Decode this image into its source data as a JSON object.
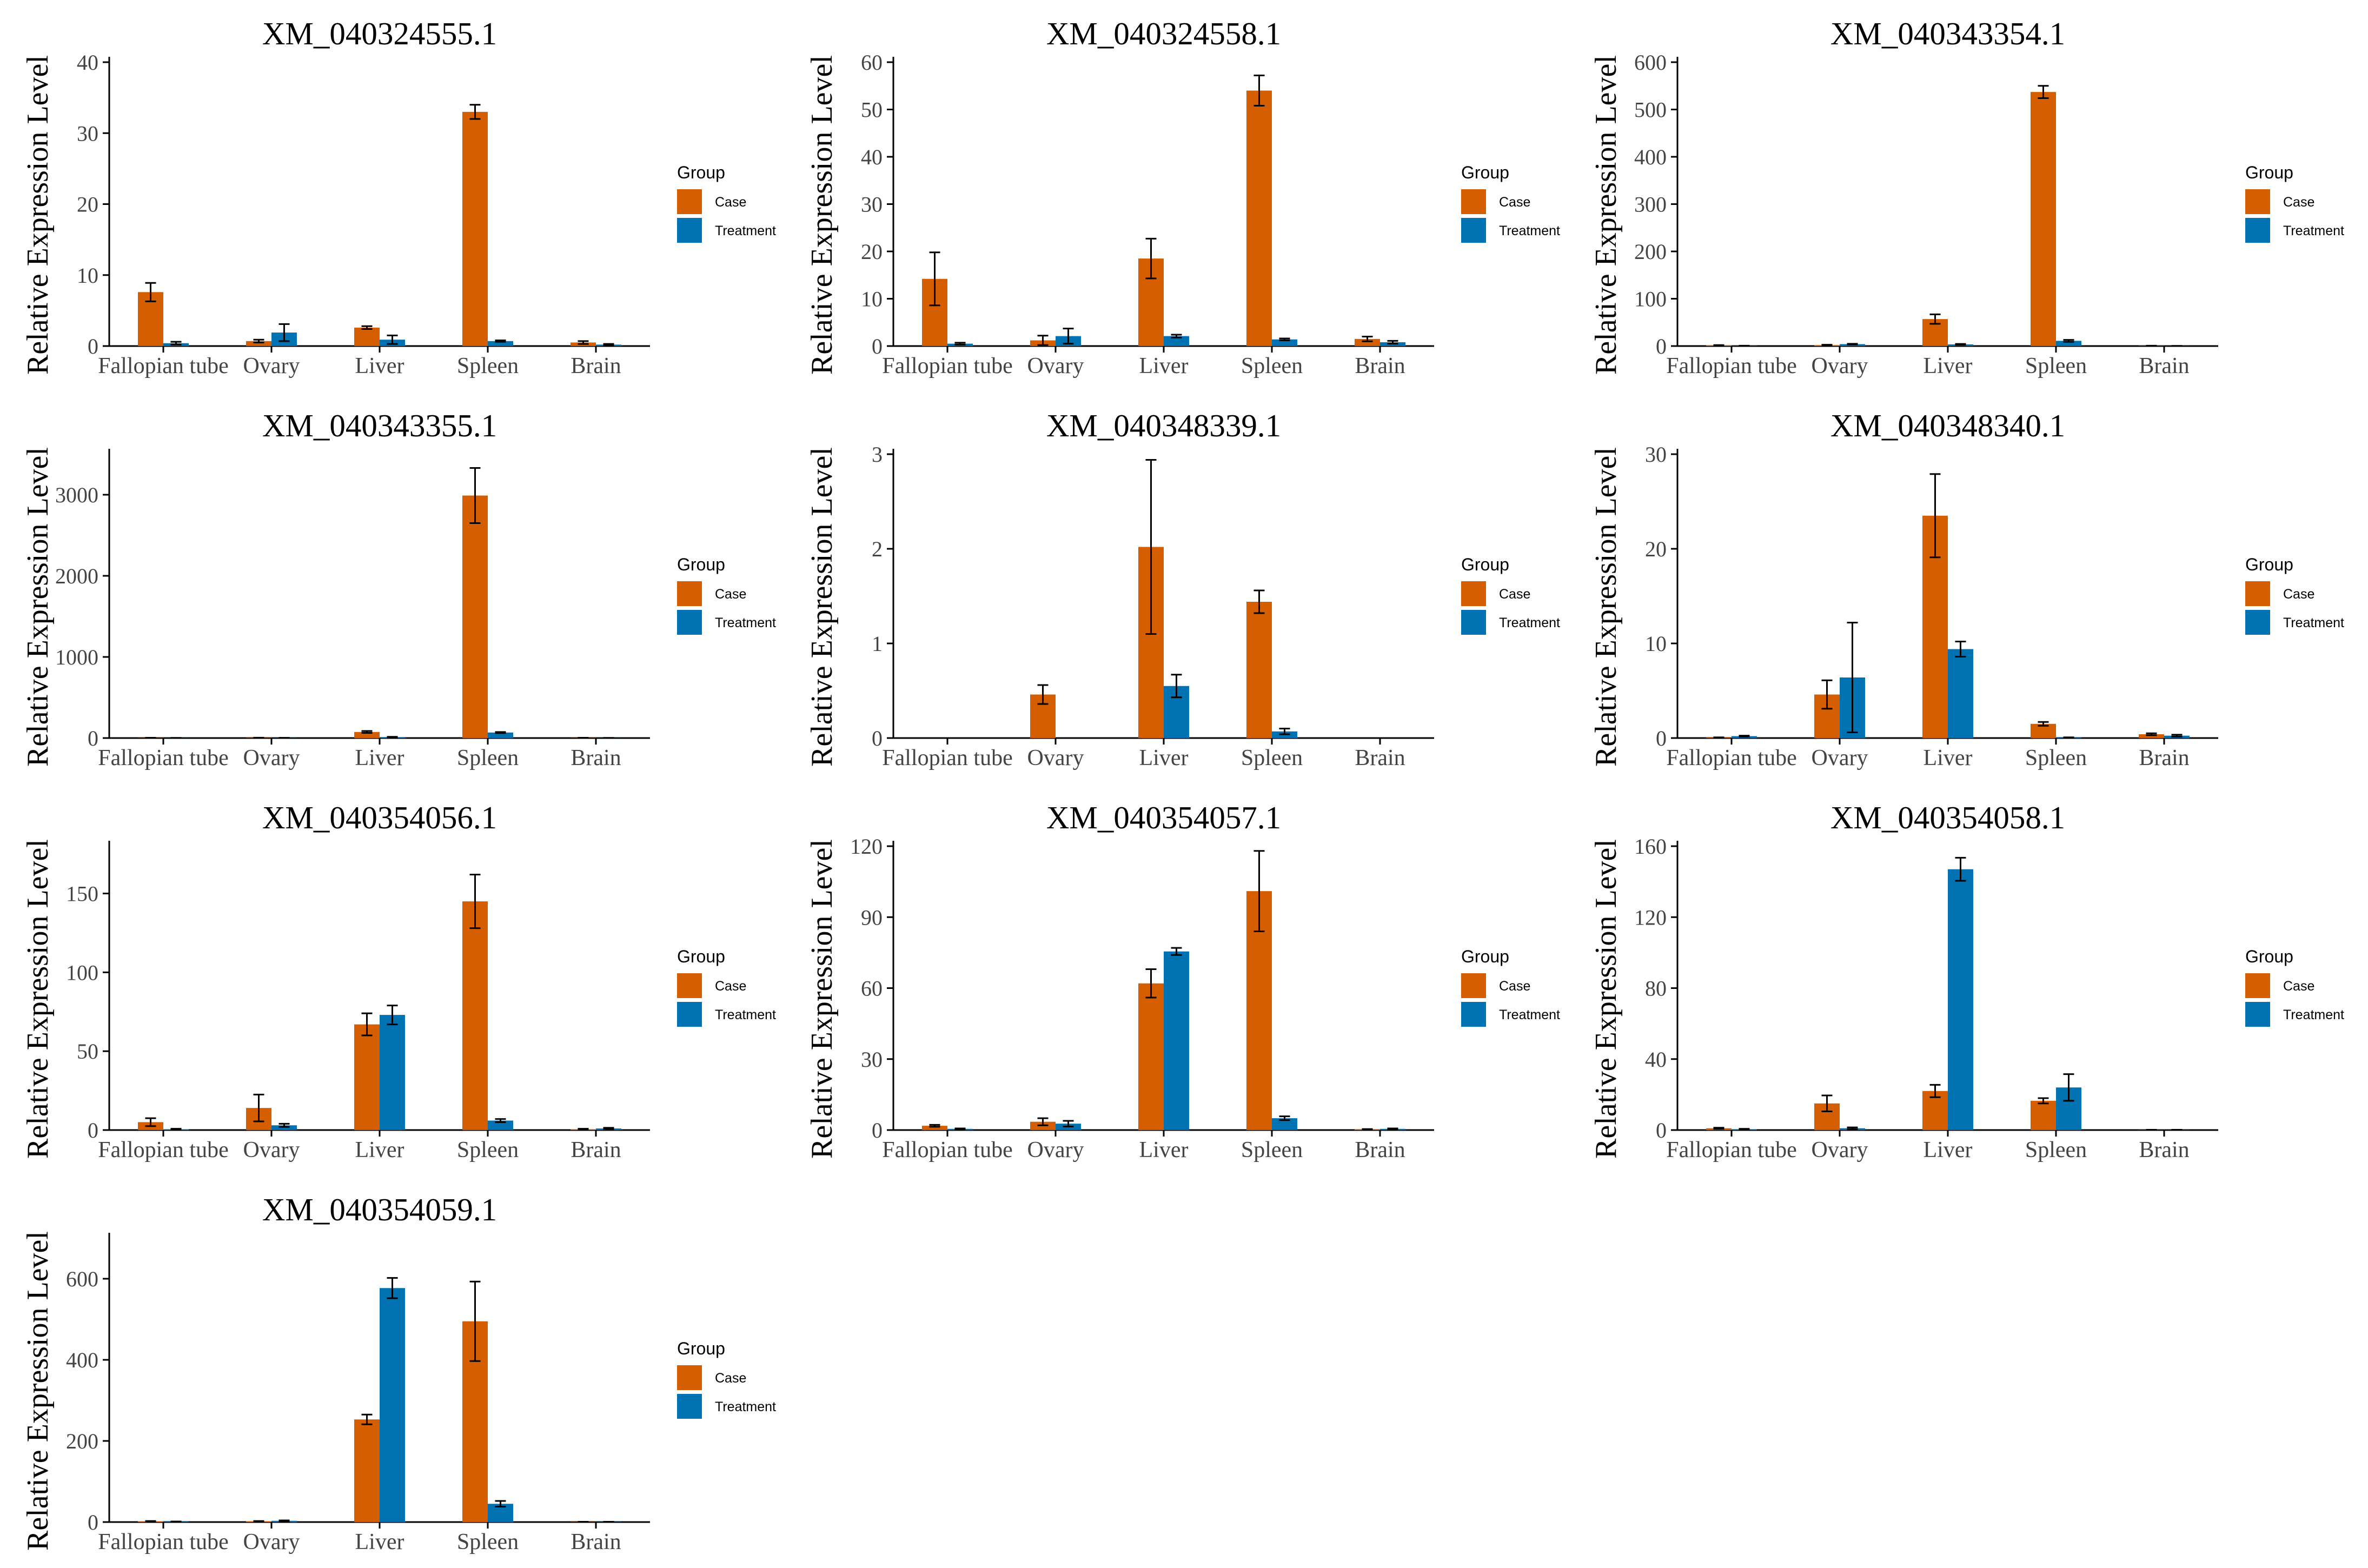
{
  "colors": {
    "case": "#D55E00",
    "treatment": "#0072B2"
  },
  "chart_data": [
    {
      "type": "bar",
      "title": "XM_040324555.1",
      "ylabel": "Relative Expression Level",
      "categories": [
        "Fallopian tube",
        "Ovary",
        "Liver",
        "Spleen",
        "Brain"
      ],
      "ylim": [
        0,
        40
      ],
      "yticks": [
        0,
        10,
        20,
        30,
        40
      ],
      "legend": {
        "title": "Group",
        "position": "right"
      },
      "series": [
        {
          "name": "Case",
          "values": [
            7.6,
            0.7,
            2.6,
            33.0,
            0.5
          ],
          "errors": [
            1.3,
            0.2,
            0.2,
            1.0,
            0.2
          ]
        },
        {
          "name": "Treatment",
          "values": [
            0.4,
            1.9,
            0.9,
            0.7,
            0.2
          ],
          "errors": [
            0.2,
            1.2,
            0.6,
            0.1,
            0.1
          ]
        }
      ]
    },
    {
      "type": "bar",
      "title": "XM_040324558.1",
      "ylabel": "Relative Expression Level",
      "categories": [
        "Fallopian tube",
        "Ovary",
        "Liver",
        "Spleen",
        "Brain"
      ],
      "ylim": [
        0,
        60
      ],
      "yticks": [
        0,
        10,
        20,
        30,
        40,
        50,
        60
      ],
      "legend": {
        "title": "Group",
        "position": "right"
      },
      "series": [
        {
          "name": "Case",
          "values": [
            14.2,
            1.2,
            18.5,
            54.0,
            1.5
          ],
          "errors": [
            5.6,
            1.0,
            4.2,
            3.2,
            0.5
          ]
        },
        {
          "name": "Treatment",
          "values": [
            0.5,
            2.1,
            2.1,
            1.4,
            0.8
          ],
          "errors": [
            0.2,
            1.6,
            0.3,
            0.2,
            0.3
          ]
        }
      ]
    },
    {
      "type": "bar",
      "title": "XM_040343354.1",
      "ylabel": "Relative Expression Level",
      "categories": [
        "Fallopian tube",
        "Ovary",
        "Liver",
        "Spleen",
        "Brain"
      ],
      "ylim": [
        0,
        600
      ],
      "yticks": [
        0,
        100,
        200,
        300,
        400,
        500,
        600
      ],
      "legend": {
        "title": "Group",
        "position": "right"
      },
      "series": [
        {
          "name": "Case",
          "values": [
            1.5,
            2.0,
            57.0,
            537.0,
            0.5
          ],
          "errors": [
            0.5,
            0.7,
            10.0,
            13.0,
            0.2
          ]
        },
        {
          "name": "Treatment",
          "values": [
            0.5,
            4.0,
            3.5,
            11.0,
            0.2
          ],
          "errors": [
            0.2,
            0.7,
            1.0,
            2.0,
            0.1
          ]
        }
      ]
    },
    {
      "type": "bar",
      "title": "XM_040343355.1",
      "ylabel": "Relative Expression Level",
      "categories": [
        "Fallopian tube",
        "Ovary",
        "Liver",
        "Spleen",
        "Brain"
      ],
      "ylim": [
        0,
        3500
      ],
      "yticks": [
        0,
        1000,
        2000,
        3000
      ],
      "legend": {
        "title": "Group",
        "position": "right"
      },
      "series": [
        {
          "name": "Case",
          "values": [
            2,
            3,
            75,
            2990,
            2
          ],
          "errors": [
            1,
            1,
            12,
            340,
            1
          ]
        },
        {
          "name": "Treatment",
          "values": [
            1,
            2,
            12,
            68,
            1
          ],
          "errors": [
            0.5,
            0.5,
            3,
            6,
            0.5
          ]
        }
      ]
    },
    {
      "type": "bar",
      "title": "XM_040348339.1",
      "ylabel": "Relative Expression Level",
      "categories": [
        "Fallopian tube",
        "Ovary",
        "Liver",
        "Spleen",
        "Brain"
      ],
      "ylim": [
        0,
        3
      ],
      "yticks": [
        0,
        1,
        2,
        3
      ],
      "legend": {
        "title": "Group",
        "position": "right"
      },
      "series": [
        {
          "name": "Case",
          "values": [
            0,
            0.46,
            2.02,
            1.44,
            0
          ],
          "errors": [
            0,
            0.1,
            0.92,
            0.12,
            0
          ]
        },
        {
          "name": "Treatment",
          "values": [
            0,
            0,
            0.55,
            0.07,
            0
          ],
          "errors": [
            0,
            0,
            0.12,
            0.03,
            0
          ]
        }
      ]
    },
    {
      "type": "bar",
      "title": "XM_040348340.1",
      "ylabel": "Relative Expression Level",
      "categories": [
        "Fallopian tube",
        "Ovary",
        "Liver",
        "Spleen",
        "Brain"
      ],
      "ylim": [
        0,
        30
      ],
      "yticks": [
        0,
        10,
        20,
        30
      ],
      "legend": {
        "title": "Group",
        "position": "right"
      },
      "series": [
        {
          "name": "Case",
          "values": [
            0.05,
            4.6,
            23.5,
            1.5,
            0.4
          ],
          "errors": [
            0.02,
            1.5,
            4.4,
            0.2,
            0.1
          ]
        },
        {
          "name": "Treatment",
          "values": [
            0.2,
            6.4,
            9.4,
            0.05,
            0.25
          ],
          "errors": [
            0.05,
            5.8,
            0.8,
            0.02,
            0.1
          ]
        }
      ]
    },
    {
      "type": "bar",
      "title": "XM_040354056.1",
      "ylabel": "Relative Expression Level",
      "categories": [
        "Fallopian tube",
        "Ovary",
        "Liver",
        "Spleen",
        "Brain"
      ],
      "ylim": [
        0,
        180
      ],
      "yticks": [
        0,
        50,
        100,
        150
      ],
      "legend": {
        "title": "Group",
        "position": "right"
      },
      "series": [
        {
          "name": "Case",
          "values": [
            5.0,
            14.0,
            67.0,
            145.0,
            0.5
          ],
          "errors": [
            2.5,
            8.5,
            7.0,
            17.0,
            0.3
          ]
        },
        {
          "name": "Treatment",
          "values": [
            0.5,
            3.0,
            73.0,
            6.0,
            1.0
          ],
          "errors": [
            0.3,
            1.0,
            6.0,
            1.0,
            0.4
          ]
        }
      ]
    },
    {
      "type": "bar",
      "title": "XM_040354057.1",
      "ylabel": "Relative Expression Level",
      "categories": [
        "Fallopian tube",
        "Ovary",
        "Liver",
        "Spleen",
        "Brain"
      ],
      "ylim": [
        0,
        120
      ],
      "yticks": [
        0,
        30,
        60,
        90,
        120
      ],
      "legend": {
        "title": "Group",
        "position": "right"
      },
      "series": [
        {
          "name": "Case",
          "values": [
            1.8,
            3.5,
            62.0,
            101.0,
            0.3
          ],
          "errors": [
            0.4,
            1.5,
            6.0,
            17.0,
            0.1
          ]
        },
        {
          "name": "Treatment",
          "values": [
            0.5,
            2.7,
            75.5,
            5.0,
            0.5
          ],
          "errors": [
            0.2,
            1.2,
            1.5,
            0.8,
            0.2
          ]
        }
      ]
    },
    {
      "type": "bar",
      "title": "XM_040354058.1",
      "ylabel": "Relative Expression Level",
      "categories": [
        "Fallopian tube",
        "Ovary",
        "Liver",
        "Spleen",
        "Brain"
      ],
      "ylim": [
        0,
        160
      ],
      "yticks": [
        0,
        40,
        80,
        120,
        160
      ],
      "legend": {
        "title": "Group",
        "position": "right"
      },
      "series": [
        {
          "name": "Case",
          "values": [
            1.0,
            15.0,
            22.0,
            16.5,
            0.1
          ],
          "errors": [
            0.3,
            4.5,
            3.5,
            1.5,
            0.05
          ]
        },
        {
          "name": "Treatment",
          "values": [
            0.5,
            1.0,
            147.0,
            24.0,
            0.1
          ],
          "errors": [
            0.2,
            0.5,
            6.5,
            7.5,
            0.05
          ]
        }
      ]
    },
    {
      "type": "bar",
      "title": "XM_040354059.1",
      "ylabel": "Relative Expression Level",
      "categories": [
        "Fallopian tube",
        "Ovary",
        "Liver",
        "Spleen",
        "Brain"
      ],
      "ylim": [
        0,
        700
      ],
      "yticks": [
        0,
        200,
        400,
        600
      ],
      "legend": {
        "title": "Group",
        "position": "right"
      },
      "series": [
        {
          "name": "Case",
          "values": [
            2,
            2,
            253,
            495,
            0.5
          ],
          "errors": [
            0.5,
            0.5,
            12,
            98,
            0.2
          ]
        },
        {
          "name": "Treatment",
          "values": [
            1,
            3,
            577,
            45,
            0.5
          ],
          "errors": [
            0.3,
            1,
            25,
            7,
            0.2
          ]
        }
      ]
    }
  ]
}
